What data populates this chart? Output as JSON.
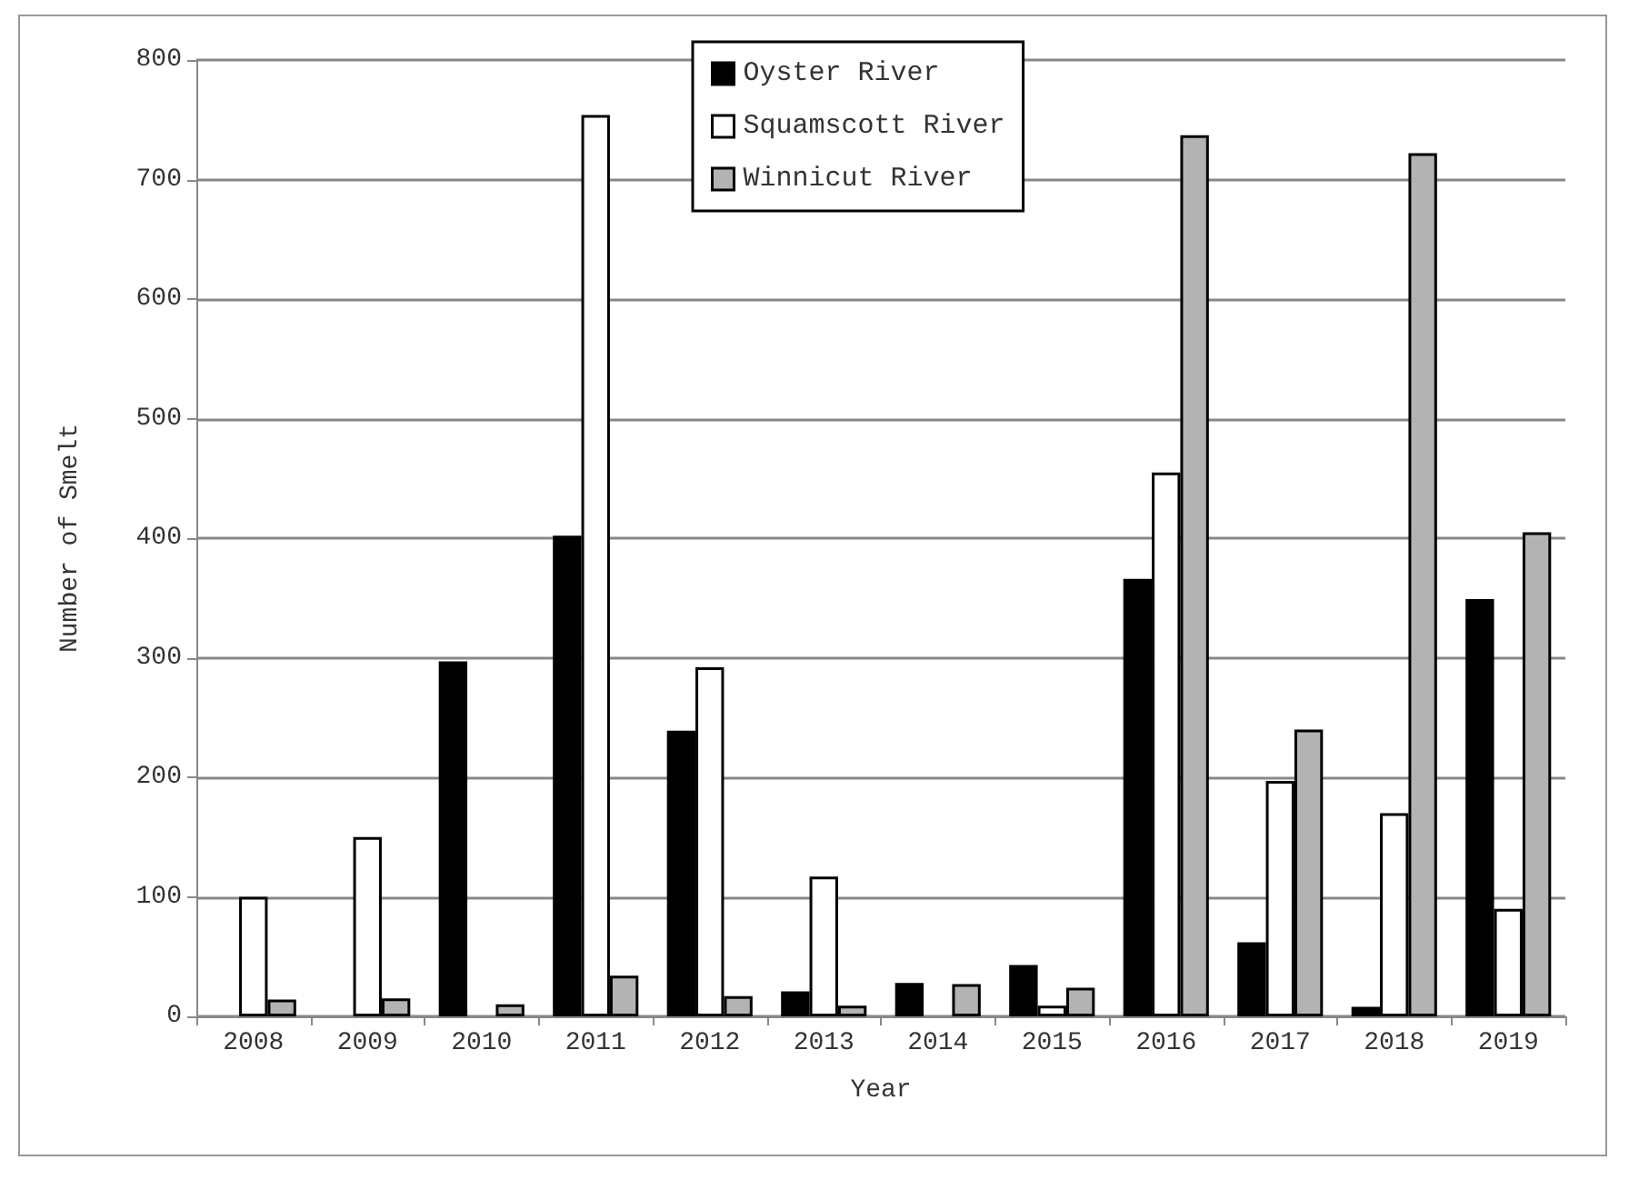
{
  "chart_data": {
    "type": "bar",
    "xlabel": "Year",
    "ylabel": "Number of Smelt",
    "categories": [
      "2008",
      "2009",
      "2010",
      "2011",
      "2012",
      "2013",
      "2014",
      "2015",
      "2016",
      "2017",
      "2018",
      "2019"
    ],
    "series": [
      {
        "name": "Oyster River",
        "color": "#000000",
        "values": [
          null,
          null,
          297,
          402,
          239,
          21,
          28,
          43,
          366,
          62,
          8,
          349
        ]
      },
      {
        "name": "Squamscott River",
        "color": "#ffffff",
        "values": [
          100,
          150,
          null,
          754,
          292,
          117,
          null,
          9,
          455,
          197,
          170,
          90
        ]
      },
      {
        "name": "Winnicut River",
        "color": "#b3b3b3",
        "values": [
          14,
          15,
          10,
          34,
          17,
          9,
          27,
          24,
          737,
          240,
          722,
          405
        ]
      }
    ],
    "ylim": [
      0,
      800
    ],
    "yticks": [
      0,
      100,
      200,
      300,
      400,
      500,
      600,
      700,
      800
    ],
    "grid": "y",
    "legend": "top"
  }
}
